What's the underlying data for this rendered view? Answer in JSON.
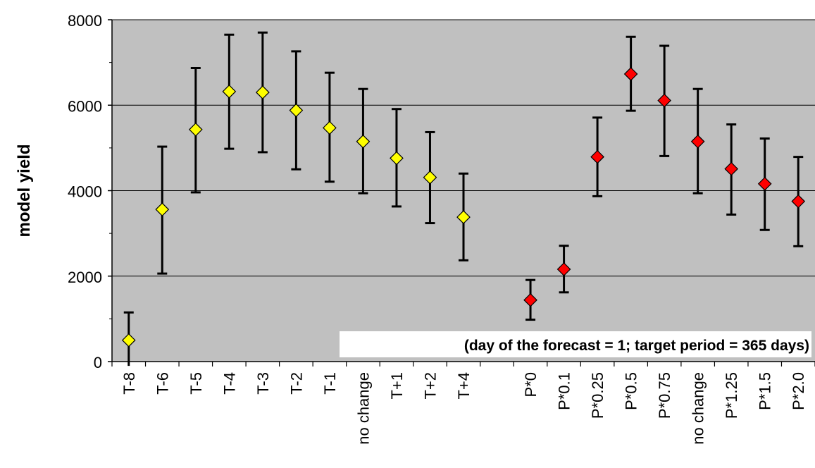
{
  "chart_data": {
    "type": "scatter",
    "ylabel": "model yield",
    "ylim": [
      0,
      8000
    ],
    "yticks": [
      0,
      2000,
      4000,
      6000,
      8000
    ],
    "grid": true,
    "annotation": "(day of the forecast = 1; target period = 365 days)",
    "annotation_position": "bottom-right",
    "colors": {
      "plot_background": "#c0c0c0",
      "temperature_markers": "#ffff00",
      "precipitation_markers": "#ff0000",
      "error_bars": "#000000"
    },
    "categories": [
      "T-8",
      "T-6",
      "T-5",
      "T-4",
      "T-3",
      "T-2",
      "T-1",
      "no change",
      "T+1",
      "T+2",
      "T+4",
      "",
      "P*0",
      "P*0.1",
      "P*0.25",
      "P*0.5",
      "P*0.75",
      "no change",
      "P*1.25",
      "P*1.5",
      "P*2.0"
    ],
    "series": [
      {
        "color": "#ffff00",
        "points": [
          {
            "category": "T-8",
            "value": 500,
            "low": -100,
            "high": 1150
          },
          {
            "category": "T-6",
            "value": 3560,
            "low": 2060,
            "high": 5030
          },
          {
            "category": "T-5",
            "value": 5430,
            "low": 3960,
            "high": 6870
          },
          {
            "category": "T-4",
            "value": 6320,
            "low": 4980,
            "high": 7650
          },
          {
            "category": "T-3",
            "value": 6300,
            "low": 4900,
            "high": 7700
          },
          {
            "category": "T-2",
            "value": 5880,
            "low": 4500,
            "high": 7260
          },
          {
            "category": "T-1",
            "value": 5470,
            "low": 4210,
            "high": 6760
          },
          {
            "category": "no change",
            "value": 5150,
            "low": 3940,
            "high": 6380
          },
          {
            "category": "T+1",
            "value": 4760,
            "low": 3630,
            "high": 5910
          },
          {
            "category": "T+2",
            "value": 4310,
            "low": 3240,
            "high": 5370
          },
          {
            "category": "T+4",
            "value": 3380,
            "low": 2370,
            "high": 4400
          }
        ]
      },
      {
        "color": "#ff0000",
        "points": [
          {
            "category": "P*0",
            "value": 1440,
            "low": 980,
            "high": 1910
          },
          {
            "category": "P*0.1",
            "value": 2160,
            "low": 1620,
            "high": 2710
          },
          {
            "category": "P*0.25",
            "value": 4790,
            "low": 3870,
            "high": 5710
          },
          {
            "category": "P*0.5",
            "value": 6730,
            "low": 5870,
            "high": 7600
          },
          {
            "category": "P*0.75",
            "value": 6110,
            "low": 4810,
            "high": 7390
          },
          {
            "category": "no change",
            "value": 5150,
            "low": 3940,
            "high": 6380
          },
          {
            "category": "P*1.25",
            "value": 4510,
            "low": 3440,
            "high": 5550
          },
          {
            "category": "P*1.5",
            "value": 4160,
            "low": 3080,
            "high": 5220
          },
          {
            "category": "P*2.0",
            "value": 3750,
            "low": 2700,
            "high": 4790
          }
        ]
      }
    ]
  }
}
